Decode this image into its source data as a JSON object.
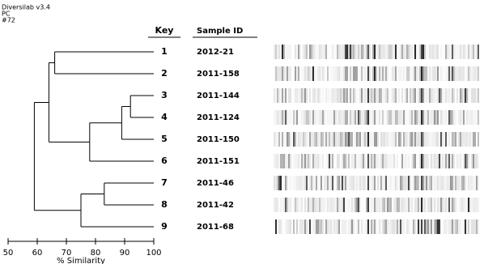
{
  "chart_data": {
    "type": "dendrogram",
    "header": [
      "Diversilab v3.4",
      "PC",
      "#72"
    ],
    "key_label": "Key",
    "sample_label": "Sample ID",
    "keys": [
      "1",
      "2",
      "3",
      "4",
      "5",
      "6",
      "7",
      "8",
      "9"
    ],
    "samples": [
      "2012-21",
      "2011-158",
      "2011-144",
      "2011-124",
      "2011-150",
      "2011-151",
      "2011-46",
      "2011-42",
      "2011-68"
    ],
    "merges": [
      {
        "nodes": [
          0,
          1
        ],
        "similarity": 66
      },
      {
        "nodes": [
          2,
          3
        ],
        "similarity": 92
      },
      {
        "nodes": [
          10,
          4
        ],
        "similarity": 89
      },
      {
        "nodes": [
          11,
          5
        ],
        "similarity": 78
      },
      {
        "nodes": [
          9,
          12
        ],
        "similarity": 64
      },
      {
        "nodes": [
          6,
          7
        ],
        "similarity": 83
      },
      {
        "nodes": [
          14,
          8
        ],
        "similarity": 75
      },
      {
        "nodes": [
          13,
          15
        ],
        "similarity": 59
      }
    ],
    "xlabel": "% Similarity",
    "xlim": [
      50,
      100
    ],
    "xticks": [
      50,
      60,
      70,
      80,
      90,
      100
    ]
  }
}
